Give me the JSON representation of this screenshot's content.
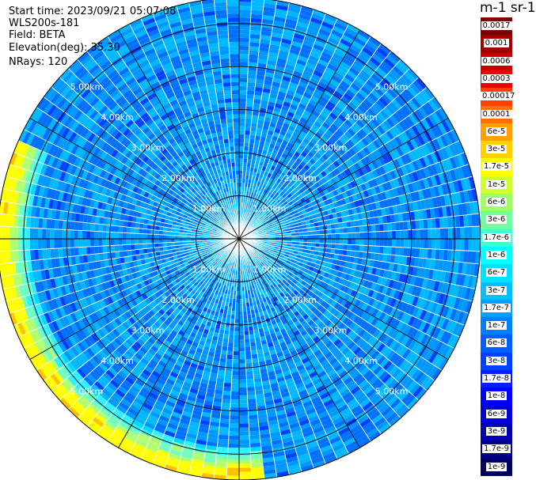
{
  "header": {
    "start_time": "Start time: 2023/09/21 05:07:08",
    "instrument": "WLS200s-181",
    "field": "Field: BETA",
    "elevation": "Elevation(deg): 35.30",
    "nrays": "NRays: 120"
  },
  "colorbar": {
    "unit": "m-1 sr-1",
    "labels": [
      "0.0017",
      "0.001",
      "0.0006",
      "0.0003",
      "0.00017",
      "0.0001",
      "6e-5",
      "3e-5",
      "1.7e-5",
      "1e-5",
      "6e-6",
      "3e-6",
      "1.7e-6",
      "1e-6",
      "6e-7",
      "3e-7",
      "1.7e-7",
      "1e-7",
      "6e-8",
      "3e-8",
      "1.7e-8",
      "1e-8",
      "6e-9",
      "3e-9",
      "1.7e-9",
      "1e-9"
    ],
    "colors": [
      "#7a0000",
      "#a00000",
      "#c80000",
      "#f00000",
      "#ff4000",
      "#ff7000",
      "#ff9f00",
      "#ffcf00",
      "#ffff00",
      "#d0ff30",
      "#a0ff60",
      "#70ffa0",
      "#40ffd0",
      "#00ffff",
      "#00e0ff",
      "#00c0ff",
      "#00a0ff",
      "#0080ff",
      "#0060ff",
      "#0040ff",
      "#0020ff",
      "#0000ff",
      "#0000d8",
      "#0000b0",
      "#000088",
      "#000060"
    ]
  },
  "chart_data": {
    "type": "heatmap",
    "subtype": "polar PPI lidar scan",
    "field": "BETA",
    "rays": 120,
    "range_rings_km": [
      1,
      2,
      3,
      4,
      5
    ],
    "ring_labels": [
      "1.00km",
      "2.00km",
      "3.00km",
      "4.00km",
      "5.00km"
    ],
    "max_range_km": 5.6,
    "spokes": 12,
    "grid": true,
    "value_pattern": {
      "dominant": "1e-7 to 1e-6 (blue to cyan)",
      "near_field": "3e-7 to 1e-6",
      "far_arc_west_to_south": "1e-5 to 3e-5 (yellow/orange)"
    }
  }
}
